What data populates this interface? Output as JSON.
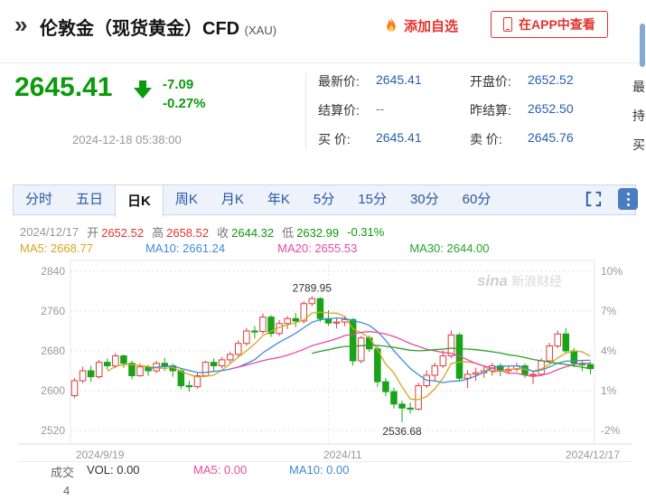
{
  "header": {
    "logo_glyph": "»",
    "title": "伦敦金（现货黄金）CFD",
    "title_suffix": "(XAU)",
    "add_watchlist": "添加自选",
    "view_in_app": "在APP中查看"
  },
  "quote": {
    "price": "2645.41",
    "change": "-7.09",
    "change_pct": "-0.27%",
    "timestamp": "2024-12-18 05:38:00",
    "fields": [
      {
        "label": "最新价:",
        "value": "2645.41"
      },
      {
        "label": "开盘价:",
        "value": "2652.52"
      },
      {
        "label": "结算价:",
        "value": "--"
      },
      {
        "label": "昨结算:",
        "value": "2652.50"
      },
      {
        "label": "买 价:",
        "value": "2645.41"
      },
      {
        "label": "卖 价:",
        "value": "2645.76"
      }
    ],
    "cut_labels": [
      "最",
      "持",
      "买"
    ]
  },
  "tabs": [
    "分时",
    "五日",
    "日K",
    "周K",
    "月K",
    "年K",
    "5分",
    "15分",
    "30分",
    "60分"
  ],
  "info_bar": {
    "date": "2024/12/17",
    "open_label": "开",
    "open": "2652.52",
    "high_label": "高",
    "high": "2658.52",
    "close_label": "收",
    "close": "2644.32",
    "low_label": "低",
    "low": "2632.99",
    "change_pct": "-0.31%"
  },
  "ma_bar": {
    "ma5": "MA5: 2668.77",
    "ma10": "MA10: 2661.24",
    "ma20": "MA20: 2655.53",
    "ma30": "MA30: 2644.00"
  },
  "volume_bar": {
    "section": "成交",
    "axis_value": "4",
    "vol": "VOL: 0.00",
    "ma5": "MA5: 0.00",
    "ma10": "MA10: 0.00"
  },
  "watermark": {
    "latin": "sina",
    "cn": "新浪财经"
  },
  "colors": {
    "up": "#e03b3b",
    "down": "#18a318",
    "price_green": "#0a9a0a",
    "accent_red": "#e2342e",
    "value_blue": "#2a5fad",
    "tab_blue": "#2857a4",
    "ma5": "#d9a520",
    "ma10": "#3f8ad8",
    "ma20": "#e84ba0",
    "ma30": "#2aa12a",
    "axis_text": "#999999"
  },
  "chart_data": {
    "type": "candlestick",
    "title": "伦敦金（现货黄金）CFD 日K",
    "y_axis": [
      "2840",
      "2760",
      "2680",
      "2600",
      "2520"
    ],
    "y_axis_pct": [
      "10%",
      "7%",
      "4%",
      "1%",
      "-2%"
    ],
    "x_labels": [
      "2024/9/19",
      "2024/11",
      "2024/12/17"
    ],
    "annotations": {
      "high": "2789.95",
      "low": "2536.68"
    },
    "ylim": [
      2493,
      2862
    ],
    "nov_index": 31,
    "candles": [
      [
        2590,
        2625,
        2585,
        2620
      ],
      [
        2620,
        2648,
        2615,
        2640
      ],
      [
        2640,
        2650,
        2618,
        2628
      ],
      [
        2628,
        2662,
        2624,
        2657
      ],
      [
        2657,
        2665,
        2642,
        2650
      ],
      [
        2650,
        2676,
        2645,
        2670
      ],
      [
        2670,
        2673,
        2646,
        2655
      ],
      [
        2655,
        2660,
        2623,
        2630
      ],
      [
        2630,
        2655,
        2628,
        2648
      ],
      [
        2648,
        2652,
        2630,
        2640
      ],
      [
        2640,
        2660,
        2635,
        2655
      ],
      [
        2655,
        2666,
        2640,
        2650
      ],
      [
        2650,
        2655,
        2628,
        2640
      ],
      [
        2640,
        2645,
        2603,
        2610
      ],
      [
        2610,
        2620,
        2598,
        2608
      ],
      [
        2608,
        2636,
        2604,
        2630
      ],
      [
        2630,
        2660,
        2628,
        2657
      ],
      [
        2657,
        2665,
        2638,
        2650
      ],
      [
        2650,
        2668,
        2645,
        2662
      ],
      [
        2662,
        2678,
        2656,
        2673
      ],
      [
        2673,
        2701,
        2668,
        2695
      ],
      [
        2695,
        2726,
        2690,
        2720
      ],
      [
        2720,
        2730,
        2705,
        2719
      ],
      [
        2719,
        2755,
        2714,
        2748
      ],
      [
        2748,
        2752,
        2708,
        2715
      ],
      [
        2715,
        2742,
        2710,
        2735
      ],
      [
        2735,
        2750,
        2724,
        2745
      ],
      [
        2745,
        2756,
        2728,
        2740
      ],
      [
        2740,
        2780,
        2735,
        2775
      ],
      [
        2775,
        2789.95,
        2770,
        2785
      ],
      [
        2785,
        2788,
        2738,
        2745
      ],
      [
        2745,
        2762,
        2730,
        2736
      ],
      [
        2736,
        2746,
        2725,
        2738
      ],
      [
        2738,
        2750,
        2730,
        2743
      ],
      [
        2743,
        2746,
        2650,
        2660
      ],
      [
        2660,
        2710,
        2655,
        2706
      ],
      [
        2706,
        2711,
        2678,
        2684
      ],
      [
        2684,
        2690,
        2608,
        2618
      ],
      [
        2618,
        2626,
        2589,
        2598
      ],
      [
        2598,
        2606,
        2564,
        2573
      ],
      [
        2573,
        2580,
        2536.68,
        2565
      ],
      [
        2565,
        2576,
        2554,
        2563
      ],
      [
        2563,
        2616,
        2560,
        2610
      ],
      [
        2610,
        2641,
        2605,
        2631
      ],
      [
        2631,
        2656,
        2620,
        2650
      ],
      [
        2650,
        2681,
        2645,
        2670
      ],
      [
        2670,
        2721,
        2665,
        2712
      ],
      [
        2712,
        2716,
        2619,
        2625
      ],
      [
        2625,
        2641,
        2605,
        2633
      ],
      [
        2633,
        2646,
        2620,
        2636
      ],
      [
        2636,
        2651,
        2626,
        2640
      ],
      [
        2640,
        2656,
        2630,
        2650
      ],
      [
        2650,
        2655,
        2629,
        2640
      ],
      [
        2640,
        2651,
        2633,
        2643
      ],
      [
        2643,
        2656,
        2638,
        2650
      ],
      [
        2650,
        2655,
        2626,
        2632
      ],
      [
        2632,
        2640,
        2613,
        2633
      ],
      [
        2633,
        2666,
        2630,
        2660
      ],
      [
        2660,
        2696,
        2655,
        2690
      ],
      [
        2690,
        2721,
        2685,
        2714
      ],
      [
        2714,
        2726,
        2674,
        2680
      ],
      [
        2680,
        2686,
        2647,
        2655
      ],
      [
        2655,
        2661,
        2639,
        2652
      ],
      [
        2652.52,
        2658.52,
        2632.99,
        2644.32
      ]
    ]
  }
}
